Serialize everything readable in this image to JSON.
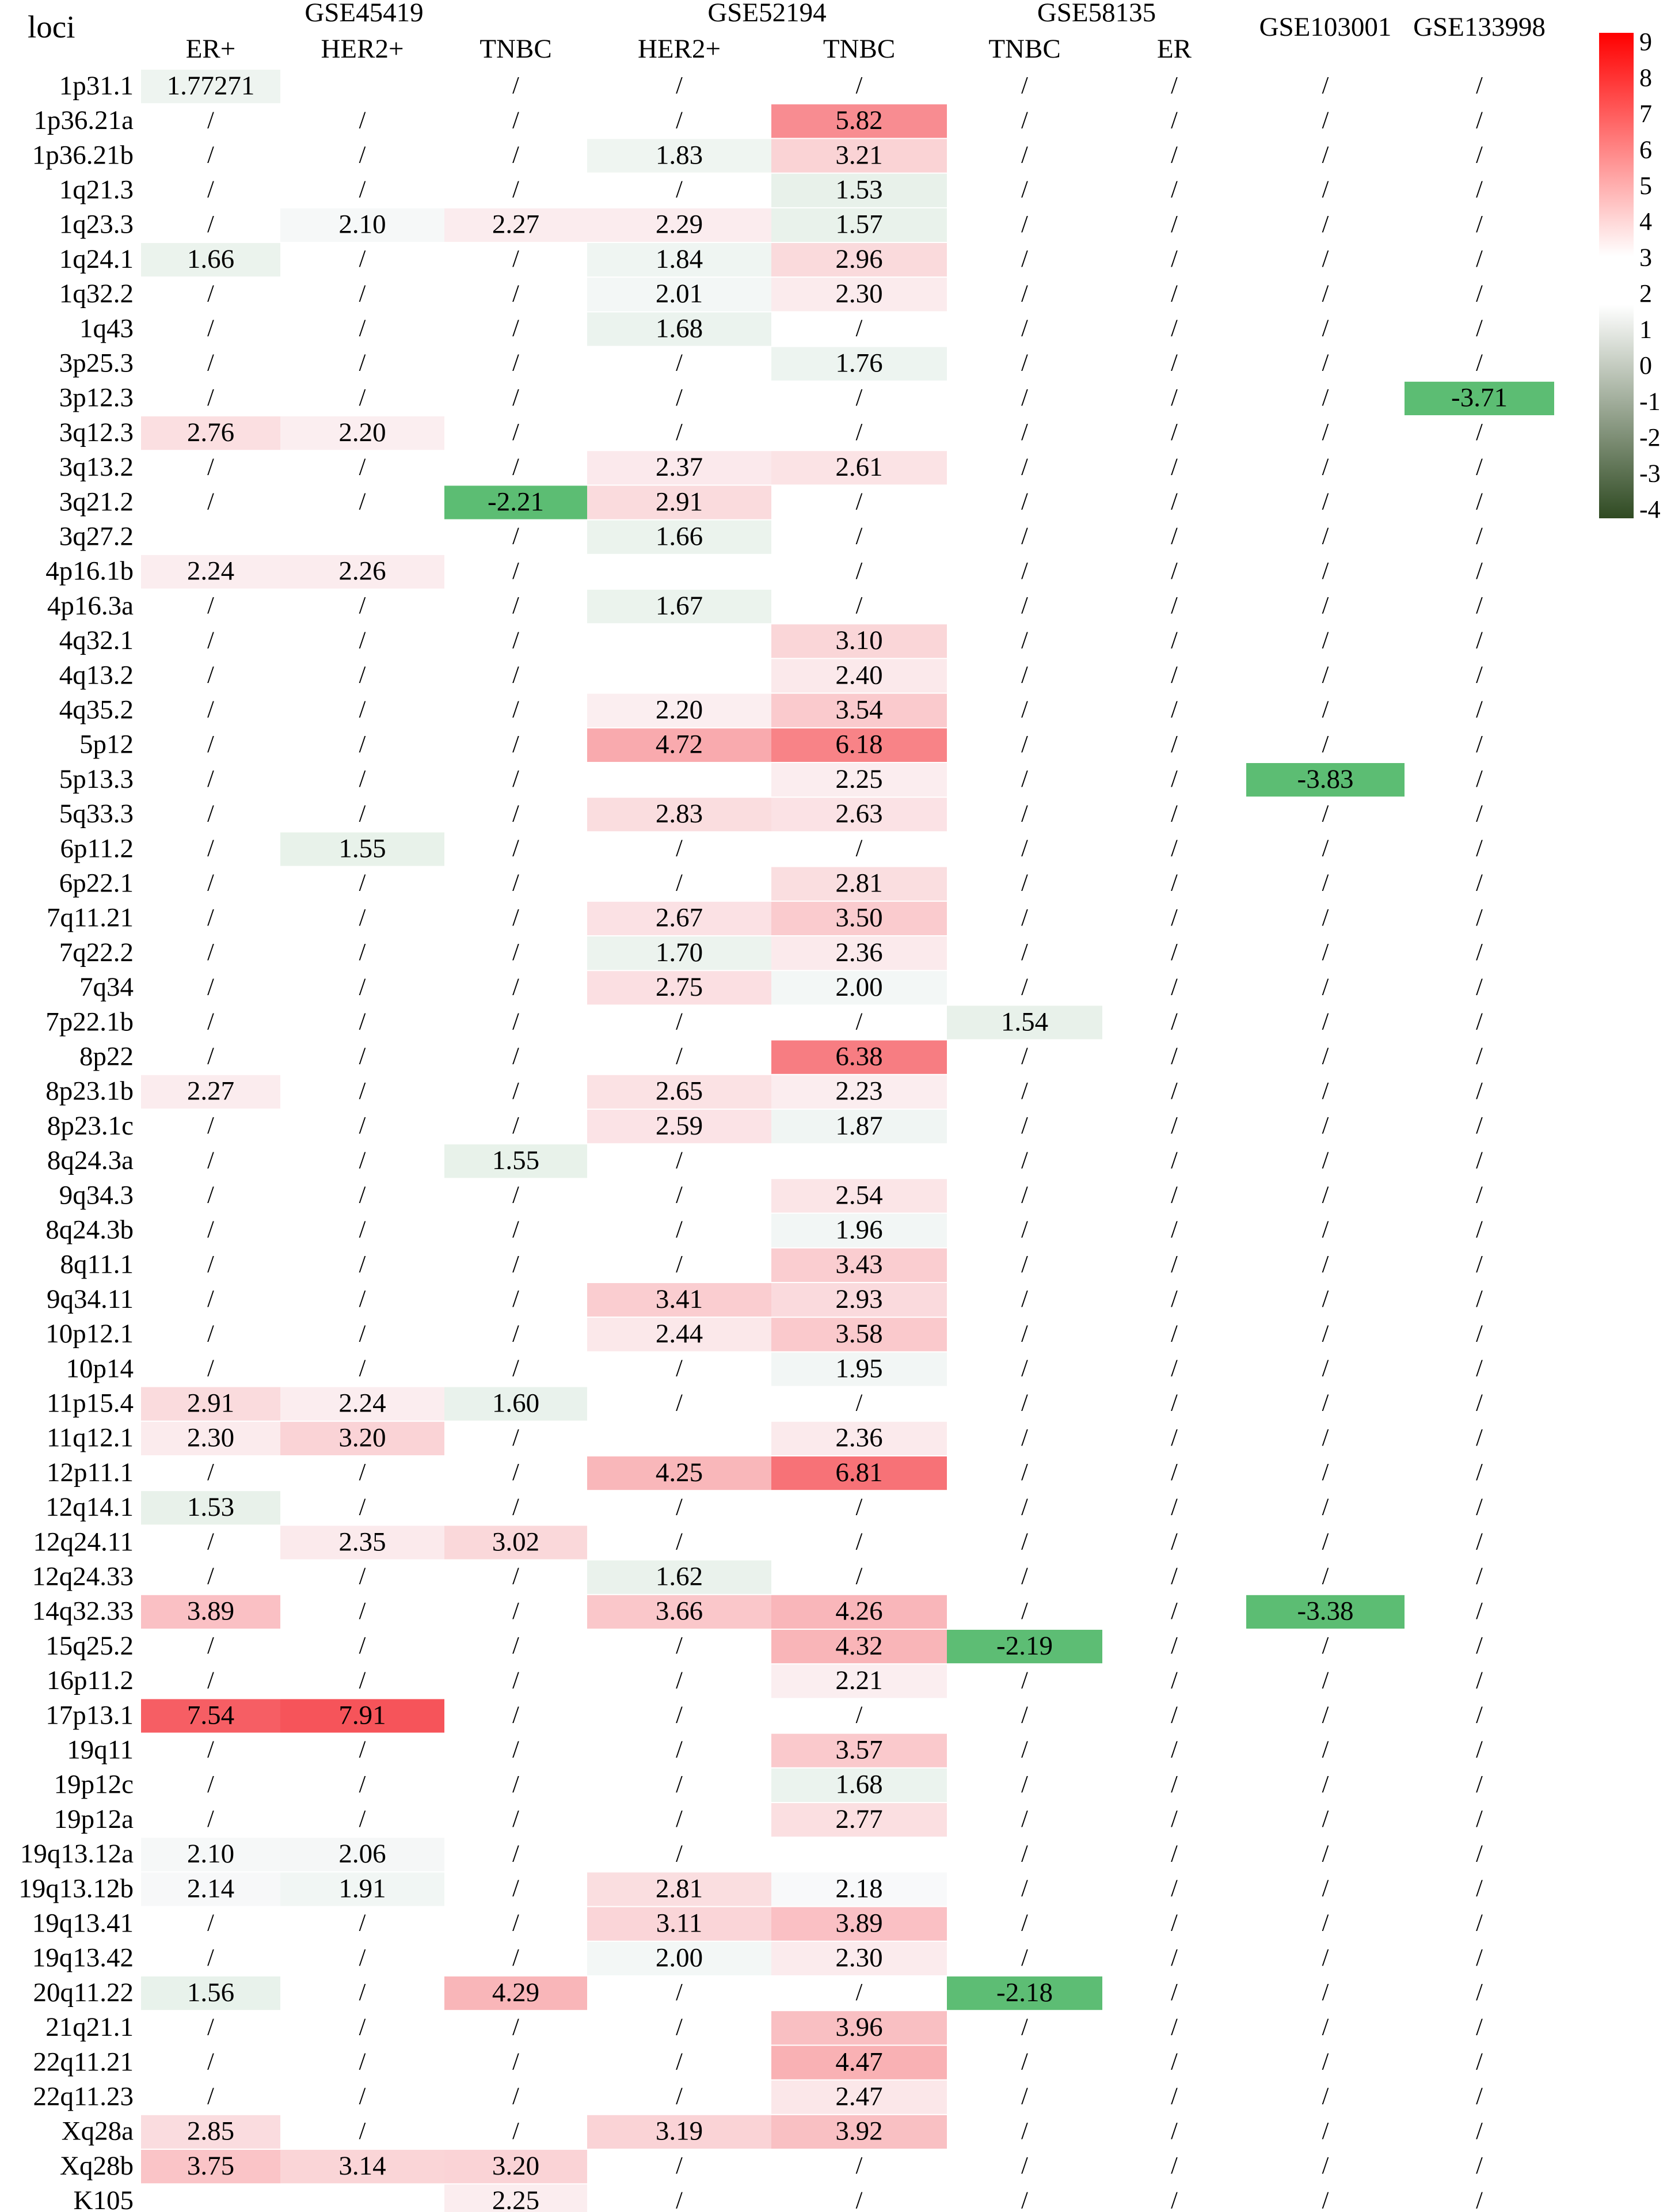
{
  "chart_data": {
    "type": "heatmap",
    "corner_label": "loci",
    "missing_symbol": "/",
    "groups": [
      {
        "name": "GSE45419",
        "columns": [
          "ER+",
          "HER2+",
          "TNBC"
        ]
      },
      {
        "name": "GSE52194",
        "columns": [
          "HER2+",
          "TNBC"
        ]
      },
      {
        "name": "GSE58135",
        "columns": [
          "TNBC",
          "ER"
        ]
      },
      {
        "name": "GSE103001",
        "columns": [
          ""
        ]
      },
      {
        "name": "GSE133998",
        "columns": [
          ""
        ]
      }
    ],
    "rows": [
      {
        "locus": "1p31.1",
        "values": [
          "1.77271",
          "",
          "/",
          "/",
          "/",
          "/",
          "/",
          "/",
          "/"
        ]
      },
      {
        "locus": "1p36.21a",
        "values": [
          "/",
          "/",
          "/",
          "/",
          "5.82",
          "/",
          "/",
          "/",
          "/"
        ]
      },
      {
        "locus": "1p36.21b",
        "values": [
          "/",
          "/",
          "/",
          "1.83",
          "3.21",
          "/",
          "/",
          "/",
          "/"
        ]
      },
      {
        "locus": "1q21.3",
        "values": [
          "/",
          "/",
          "/",
          "/",
          "1.53",
          "/",
          "/",
          "/",
          "/"
        ]
      },
      {
        "locus": "1q23.3",
        "values": [
          "/",
          "2.10",
          "2.27",
          "2.29",
          "1.57",
          "/",
          "/",
          "/",
          "/"
        ]
      },
      {
        "locus": "1q24.1",
        "values": [
          "1.66",
          "/",
          "/",
          "1.84",
          "2.96",
          "/",
          "/",
          "/",
          "/"
        ]
      },
      {
        "locus": "1q32.2",
        "values": [
          "/",
          "/",
          "/",
          "2.01",
          "2.30",
          "/",
          "/",
          "/",
          "/"
        ]
      },
      {
        "locus": "1q43",
        "values": [
          "/",
          "/",
          "/",
          "1.68",
          "/",
          "/",
          "/",
          "/",
          "/"
        ]
      },
      {
        "locus": "3p25.3",
        "values": [
          "/",
          "/",
          "/",
          "/",
          "1.76",
          "/",
          "/",
          "/",
          "/"
        ]
      },
      {
        "locus": "3p12.3",
        "values": [
          "/",
          "/",
          "/",
          "/",
          "/",
          "/",
          "/",
          "/",
          "-3.71"
        ]
      },
      {
        "locus": "3q12.3",
        "values": [
          "2.76",
          "2.20",
          "/",
          "/",
          "/",
          "/",
          "/",
          "/",
          "/"
        ]
      },
      {
        "locus": "3q13.2",
        "values": [
          "/",
          "/",
          "/",
          "2.37",
          "2.61",
          "/",
          "/",
          "/",
          "/"
        ]
      },
      {
        "locus": "3q21.2",
        "values": [
          "/",
          "/",
          "-2.21",
          "2.91",
          "/",
          "/",
          "/",
          "/",
          "/"
        ]
      },
      {
        "locus": "3q27.2",
        "values": [
          "",
          "",
          "/",
          "1.66",
          "/",
          "/",
          "/",
          "/",
          "/"
        ]
      },
      {
        "locus": "4p16.1b",
        "values": [
          "2.24",
          "2.26",
          "/",
          "",
          "/",
          "/",
          "/",
          "/",
          "/"
        ]
      },
      {
        "locus": "4p16.3a",
        "values": [
          "/",
          "/",
          "/",
          "1.67",
          "/",
          "/",
          "/",
          "/",
          "/"
        ]
      },
      {
        "locus": "4q32.1",
        "values": [
          "/",
          "/",
          "/",
          "",
          "3.10",
          "/",
          "/",
          "/",
          "/"
        ]
      },
      {
        "locus": "4q13.2",
        "values": [
          "/",
          "/",
          "/",
          "",
          "2.40",
          "/",
          "/",
          "/",
          "/"
        ]
      },
      {
        "locus": "4q35.2",
        "values": [
          "/",
          "/",
          "/",
          "2.20",
          "3.54",
          "/",
          "/",
          "/",
          "/"
        ]
      },
      {
        "locus": "5p12",
        "values": [
          "/",
          "/",
          "/",
          "4.72",
          "6.18",
          "/",
          "/",
          "/",
          "/"
        ]
      },
      {
        "locus": "5p13.3",
        "values": [
          "/",
          "/",
          "/",
          "",
          "2.25",
          "/",
          "/",
          "-3.83",
          "/"
        ]
      },
      {
        "locus": "5q33.3",
        "values": [
          "/",
          "/",
          "/",
          "2.83",
          "2.63",
          "/",
          "/",
          "/",
          "/"
        ]
      },
      {
        "locus": "6p11.2",
        "values": [
          "/",
          "1.55",
          "/",
          "/",
          "/",
          "/",
          "/",
          "/",
          "/"
        ]
      },
      {
        "locus": "6p22.1",
        "values": [
          "/",
          "/",
          "/",
          "/",
          "2.81",
          "/",
          "/",
          "/",
          "/"
        ]
      },
      {
        "locus": "7q11.21",
        "values": [
          "/",
          "/",
          "/",
          "2.67",
          "3.50",
          "/",
          "/",
          "/",
          "/"
        ]
      },
      {
        "locus": "7q22.2",
        "values": [
          "/",
          "/",
          "/",
          "1.70",
          "2.36",
          "/",
          "/",
          "/",
          "/"
        ]
      },
      {
        "locus": "7q34",
        "values": [
          "/",
          "/",
          "/",
          "2.75",
          "2.00",
          "/",
          "/",
          "/",
          "/"
        ]
      },
      {
        "locus": "7p22.1b",
        "values": [
          "/",
          "/",
          "/",
          "/",
          "/",
          "1.54",
          "/",
          "/",
          "/"
        ]
      },
      {
        "locus": "8p22",
        "values": [
          "/",
          "/",
          "/",
          "/",
          "6.38",
          "/",
          "/",
          "/",
          "/"
        ]
      },
      {
        "locus": "8p23.1b",
        "values": [
          "2.27",
          "/",
          "/",
          "2.65",
          "2.23",
          "/",
          "/",
          "/",
          "/"
        ]
      },
      {
        "locus": "8p23.1c",
        "values": [
          "/",
          "/",
          "/",
          "2.59",
          "1.87",
          "/",
          "/",
          "/",
          "/"
        ]
      },
      {
        "locus": "8q24.3a",
        "values": [
          "/",
          "/",
          "1.55",
          "/",
          "",
          "/",
          "/",
          "/",
          "/"
        ]
      },
      {
        "locus": "9q34.3",
        "values": [
          "/",
          "/",
          "/",
          "/",
          "2.54",
          "/",
          "/",
          "/",
          "/"
        ]
      },
      {
        "locus": "8q24.3b",
        "values": [
          "/",
          "/",
          "/",
          "/",
          "1.96",
          "/",
          "/",
          "/",
          "/"
        ]
      },
      {
        "locus": "8q11.1",
        "values": [
          "/",
          "/",
          "/",
          "/",
          "3.43",
          "/",
          "/",
          "/",
          "/"
        ]
      },
      {
        "locus": "9q34.11",
        "values": [
          "/",
          "/",
          "/",
          "3.41",
          "2.93",
          "/",
          "/",
          "/",
          "/"
        ]
      },
      {
        "locus": "10p12.1",
        "values": [
          "/",
          "/",
          "/",
          "2.44",
          "3.58",
          "/",
          "/",
          "/",
          "/"
        ]
      },
      {
        "locus": "10p14",
        "values": [
          "/",
          "/",
          "/",
          "/",
          "1.95",
          "/",
          "/",
          "/",
          "/"
        ]
      },
      {
        "locus": "11p15.4",
        "values": [
          "2.91",
          "2.24",
          "1.60",
          "/",
          "/",
          "/",
          "/",
          "/",
          "/"
        ]
      },
      {
        "locus": "11q12.1",
        "values": [
          "2.30",
          "3.20",
          "/",
          "",
          "2.36",
          "/",
          "/",
          "/",
          "/"
        ]
      },
      {
        "locus": "12p11.1",
        "values": [
          "/",
          "/",
          "/",
          "4.25",
          "6.81",
          "/",
          "/",
          "/",
          "/"
        ]
      },
      {
        "locus": "12q14.1",
        "values": [
          "1.53",
          "/",
          "/",
          "/",
          "/",
          "/",
          "/",
          "/",
          "/"
        ]
      },
      {
        "locus": "12q24.11",
        "values": [
          "/",
          "2.35",
          "3.02",
          "/",
          "/",
          "/",
          "/",
          "/",
          "/"
        ]
      },
      {
        "locus": "12q24.33",
        "values": [
          "/",
          "/",
          "/",
          "1.62",
          "/",
          "/",
          "/",
          "/",
          "/"
        ]
      },
      {
        "locus": "14q32.33",
        "values": [
          "3.89",
          "/",
          "/",
          "3.66",
          "4.26",
          "/",
          "/",
          "-3.38",
          "/"
        ]
      },
      {
        "locus": "15q25.2",
        "values": [
          "/",
          "/",
          "/",
          "/",
          "4.32",
          "-2.19",
          "/",
          "/",
          "/"
        ]
      },
      {
        "locus": "16p11.2",
        "values": [
          "/",
          "/",
          "/",
          "/",
          "2.21",
          "/",
          "/",
          "/",
          "/"
        ]
      },
      {
        "locus": "17p13.1",
        "values": [
          "7.54",
          "7.91",
          "/",
          "/",
          "/",
          "/",
          "/",
          "/",
          "/"
        ]
      },
      {
        "locus": "19q11",
        "values": [
          "/",
          "/",
          "/",
          "/",
          "3.57",
          "/",
          "/",
          "/",
          "/"
        ]
      },
      {
        "locus": "19p12c",
        "values": [
          "/",
          "/",
          "/",
          "/",
          "1.68",
          "/",
          "/",
          "/",
          "/"
        ]
      },
      {
        "locus": "19p12a",
        "values": [
          "/",
          "/",
          "/",
          "/",
          "2.77",
          "/",
          "/",
          "/",
          "/"
        ]
      },
      {
        "locus": "19q13.12a",
        "values": [
          "2.10",
          "2.06",
          "/",
          "/",
          "",
          "/",
          "/",
          "/",
          "/"
        ]
      },
      {
        "locus": "19q13.12b",
        "values": [
          "2.14",
          "1.91",
          "/",
          "2.81",
          "2.18",
          "/",
          "/",
          "/",
          "/"
        ]
      },
      {
        "locus": "19q13.41",
        "values": [
          "/",
          "/",
          "/",
          "3.11",
          "3.89",
          "/",
          "/",
          "/",
          "/"
        ]
      },
      {
        "locus": "19q13.42",
        "values": [
          "/",
          "/",
          "/",
          "2.00",
          "2.30",
          "/",
          "/",
          "/",
          "/"
        ]
      },
      {
        "locus": "20q11.22",
        "values": [
          "1.56",
          "/",
          "4.29",
          "/",
          "/",
          "-2.18",
          "/",
          "/",
          "/"
        ]
      },
      {
        "locus": "21q21.1",
        "values": [
          "/",
          "/",
          "/",
          "/",
          "3.96",
          "/",
          "/",
          "/",
          "/"
        ]
      },
      {
        "locus": "22q11.21",
        "values": [
          "/",
          "/",
          "/",
          "/",
          "4.47",
          "/",
          "/",
          "/",
          "/"
        ]
      },
      {
        "locus": "22q11.23",
        "values": [
          "/",
          "/",
          "/",
          "/",
          "2.47",
          "/",
          "/",
          "/",
          "/"
        ]
      },
      {
        "locus": "Xq28a",
        "values": [
          "2.85",
          "/",
          "/",
          "3.19",
          "3.92",
          "/",
          "/",
          "/",
          "/"
        ]
      },
      {
        "locus": "Xq28b",
        "values": [
          "3.75",
          "3.14",
          "3.20",
          "/",
          "/",
          "/",
          "/",
          "/",
          "/"
        ]
      },
      {
        "locus": "K105",
        "values": [
          "",
          "",
          "2.25",
          "/",
          "/",
          "/",
          "/",
          "/",
          "/"
        ]
      }
    ],
    "colorbar": {
      "ticks": [
        "9",
        "8",
        "7",
        "6",
        "5",
        "4",
        "3",
        "2",
        "1",
        "0",
        "-1",
        "-2",
        "-3",
        "-4"
      ],
      "range": [
        -4,
        9
      ],
      "colors": {
        "high": "#ff0000",
        "mid": "#ffffff",
        "low": "#2f4a22"
      }
    },
    "cell_palette": {
      "positive_max": "#f6545a",
      "positive_light": "#fbeef0",
      "near_white": "#f8f9fb",
      "green_light": "#e7f1e9",
      "green_strong": "#5cbd73"
    },
    "legend": "right"
  }
}
